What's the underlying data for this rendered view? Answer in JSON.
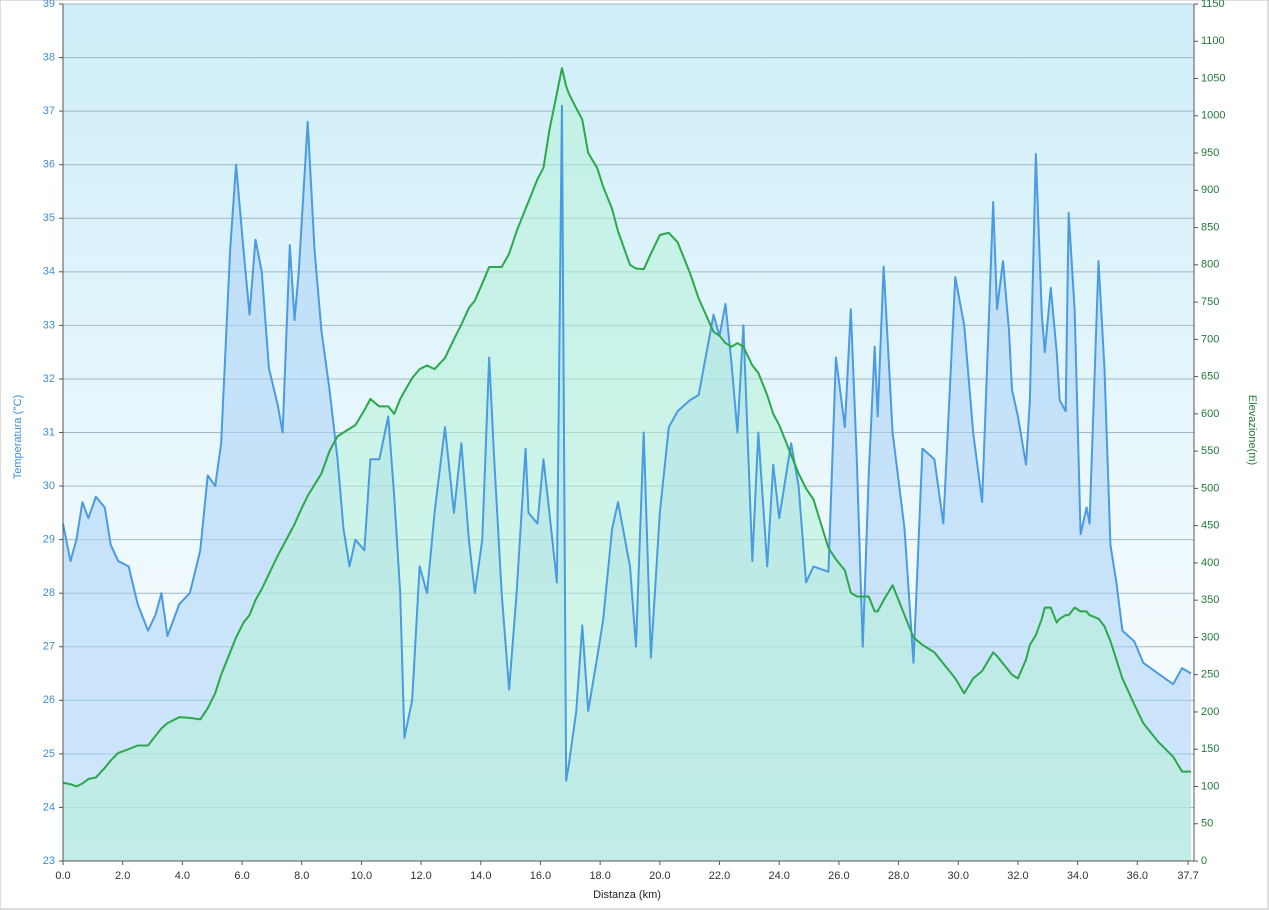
{
  "chart_data": {
    "type": "line",
    "x_label": "Distanza  (km)",
    "y_label": "Temperatura (°C)",
    "y2_label": "Elevazione(m)",
    "grid": true,
    "xlim": [
      0,
      37.9
    ],
    "ylim": [
      23,
      39
    ],
    "y2lim": [
      0,
      1150
    ],
    "xticks": [
      {
        "value": 0,
        "label": "0.0"
      },
      {
        "value": 2,
        "label": "2.0"
      },
      {
        "value": 4,
        "label": "4.0"
      },
      {
        "value": 6,
        "label": "6.0"
      },
      {
        "value": 8,
        "label": "8.0"
      },
      {
        "value": 10,
        "label": "10.0"
      },
      {
        "value": 12,
        "label": "12.0"
      },
      {
        "value": 14,
        "label": "14.0"
      },
      {
        "value": 16,
        "label": "16.0"
      },
      {
        "value": 18,
        "label": "18.0"
      },
      {
        "value": 20,
        "label": "20.0"
      },
      {
        "value": 22,
        "label": "22.0"
      },
      {
        "value": 24,
        "label": "24.0"
      },
      {
        "value": 26,
        "label": "26.0"
      },
      {
        "value": 28,
        "label": "28.0"
      },
      {
        "value": 30,
        "label": "30.0"
      },
      {
        "value": 32,
        "label": "32.0"
      },
      {
        "value": 34,
        "label": "34.0"
      },
      {
        "value": 36,
        "label": "36.0"
      },
      37.7
    ],
    "yticks": [
      23,
      24,
      25,
      26,
      27,
      28,
      29,
      30,
      31,
      32,
      33,
      34,
      35,
      36,
      37,
      38,
      39
    ],
    "y2ticks": [
      0,
      50,
      100,
      150,
      200,
      250,
      300,
      350,
      400,
      450,
      500,
      550,
      600,
      650,
      700,
      750,
      800,
      850,
      900,
      950,
      1000,
      1050,
      1100,
      1150
    ],
    "x": [
      0,
      0.25,
      0.45,
      0.65,
      0.85,
      1.1,
      1.4,
      1.6,
      1.85,
      2.2,
      2.5,
      2.85,
      3.1,
      3.3,
      3.5,
      3.9,
      4.25,
      4.6,
      4.85,
      5.1,
      5.3,
      5.6,
      5.8,
      6.05,
      6.25,
      6.45,
      6.66,
      6.9,
      7.2,
      7.36,
      7.6,
      7.76,
      7.9,
      8.2,
      8.43,
      8.66,
      8.93,
      9.2,
      9.4,
      9.6,
      9.8,
      10.1,
      10.3,
      10.6,
      10.9,
      11.1,
      11.3,
      11.44,
      11.7,
      11.95,
      12.2,
      12.45,
      12.8,
      13.1,
      13.35,
      13.6,
      13.8,
      14.05,
      14.28,
      14.45,
      14.7,
      14.95,
      15.2,
      15.5,
      15.6,
      15.9,
      16.1,
      16.3,
      16.55,
      16.72,
      16.86,
      16.95,
      17.2,
      17.4,
      17.6,
      17.9,
      18.1,
      18.4,
      18.6,
      19.0,
      19.2,
      19.46,
      19.7,
      20.0,
      20.3,
      20.6,
      21.0,
      21.3,
      21.8,
      22.0,
      22.2,
      22.4,
      22.6,
      22.8,
      23.1,
      23.3,
      23.6,
      23.8,
      24.0,
      24.4,
      24.65,
      24.9,
      25.15,
      25.65,
      25.9,
      26.2,
      26.4,
      26.6,
      26.8,
      27.0,
      27.2,
      27.3,
      27.5,
      27.8,
      28.2,
      28.5,
      28.8,
      29.2,
      29.5,
      29.9,
      30.2,
      30.5,
      30.8,
      31.17,
      31.3,
      31.5,
      31.7,
      31.8,
      32.0,
      32.27,
      32.4,
      32.6,
      32.8,
      32.9,
      33.1,
      33.3,
      33.4,
      33.6,
      33.7,
      33.9,
      34.1,
      34.3,
      34.4,
      34.7,
      34.9,
      35.1,
      35.3,
      35.5,
      35.9,
      36.2,
      36.7,
      37.2,
      37.5,
      37.8
    ],
    "series": [
      {
        "name": "Temperatura",
        "color": "#4a9be0",
        "axis": "y",
        "values": [
          29.3,
          28.6,
          29.0,
          29.7,
          29.4,
          29.8,
          29.6,
          28.9,
          28.6,
          28.5,
          27.8,
          27.3,
          27.6,
          28.0,
          27.2,
          27.8,
          28.0,
          28.8,
          30.2,
          30.0,
          30.8,
          34.4,
          36.0,
          34.4,
          33.2,
          34.6,
          34.0,
          32.2,
          31.5,
          31.0,
          34.5,
          33.1,
          34.0,
          36.8,
          34.4,
          32.9,
          31.8,
          30.5,
          29.2,
          28.5,
          29.0,
          28.8,
          30.5,
          30.5,
          31.3,
          29.8,
          28.0,
          25.3,
          26.0,
          28.5,
          28.0,
          29.5,
          31.1,
          29.5,
          30.8,
          29.0,
          28.0,
          29.0,
          32.4,
          30.5,
          28.0,
          26.2,
          28.0,
          30.7,
          29.5,
          29.3,
          30.5,
          29.5,
          28.2,
          37.1,
          24.5,
          24.8,
          25.8,
          27.4,
          25.8,
          26.8,
          27.5,
          29.2,
          29.7,
          28.5,
          27.0,
          31.0,
          26.8,
          29.5,
          31.1,
          31.4,
          31.6,
          31.7,
          33.2,
          32.8,
          33.4,
          32.3,
          31.0,
          33.0,
          28.6,
          31.0,
          28.5,
          30.4,
          29.4,
          30.8,
          30.0,
          28.2,
          28.5,
          28.4,
          32.4,
          31.1,
          33.3,
          30.5,
          27.0,
          30.2,
          32.6,
          31.3,
          34.1,
          31.0,
          29.2,
          26.7,
          30.7,
          30.5,
          29.3,
          33.9,
          33.0,
          31.0,
          29.7,
          35.3,
          33.3,
          34.2,
          32.9,
          31.8,
          31.3,
          30.4,
          31.6,
          36.2,
          33.2,
          32.5,
          33.7,
          32.5,
          31.6,
          31.4,
          35.1,
          33.3,
          29.1,
          29.6,
          29.3,
          34.2,
          32.2,
          28.9,
          28.2,
          27.3,
          27.1,
          26.7,
          26.5,
          26.3,
          26.6,
          26.5
        ]
      },
      {
        "name": "Elevazione",
        "color": "#2aa84a",
        "axis": "y2",
        "values": [
          105,
          103,
          100,
          104,
          110,
          112,
          125,
          135,
          145,
          150,
          155,
          155,
          168,
          178,
          185,
          193,
          192,
          190,
          205,
          225,
          250,
          280,
          300,
          320,
          330,
          350,
          365,
          385,
          410,
          422,
          440,
          452,
          465,
          490,
          505,
          520,
          550,
          570,
          575,
          580,
          585,
          605,
          620,
          610,
          610,
          600,
          620,
          630,
          648,
          660,
          665,
          660,
          675,
          700,
          720,
          742,
          752,
          775,
          797,
          797,
          797,
          815,
          845,
          875,
          885,
          915,
          930,
          981,
          1030,
          1064,
          1040,
          1030,
          1010,
          995,
          950,
          930,
          905,
          875,
          845,
          800,
          795,
          794,
          815,
          840,
          843,
          830,
          790,
          755,
          710,
          705,
          695,
          690,
          695,
          690,
          665,
          655,
          625,
          600,
          585,
          545,
          520,
          500,
          485,
          420,
          405,
          390,
          360,
          355,
          355,
          355,
          335,
          335,
          350,
          370,
          330,
          300,
          290,
          280,
          265,
          245,
          225,
          245,
          255,
          280,
          275,
          265,
          255,
          250,
          245,
          270,
          290,
          303,
          325,
          340,
          340,
          320,
          325,
          330,
          330,
          340,
          335,
          335,
          330,
          325,
          315,
          295,
          270,
          245,
          210,
          185,
          160,
          140,
          120,
          120
        ]
      }
    ]
  }
}
